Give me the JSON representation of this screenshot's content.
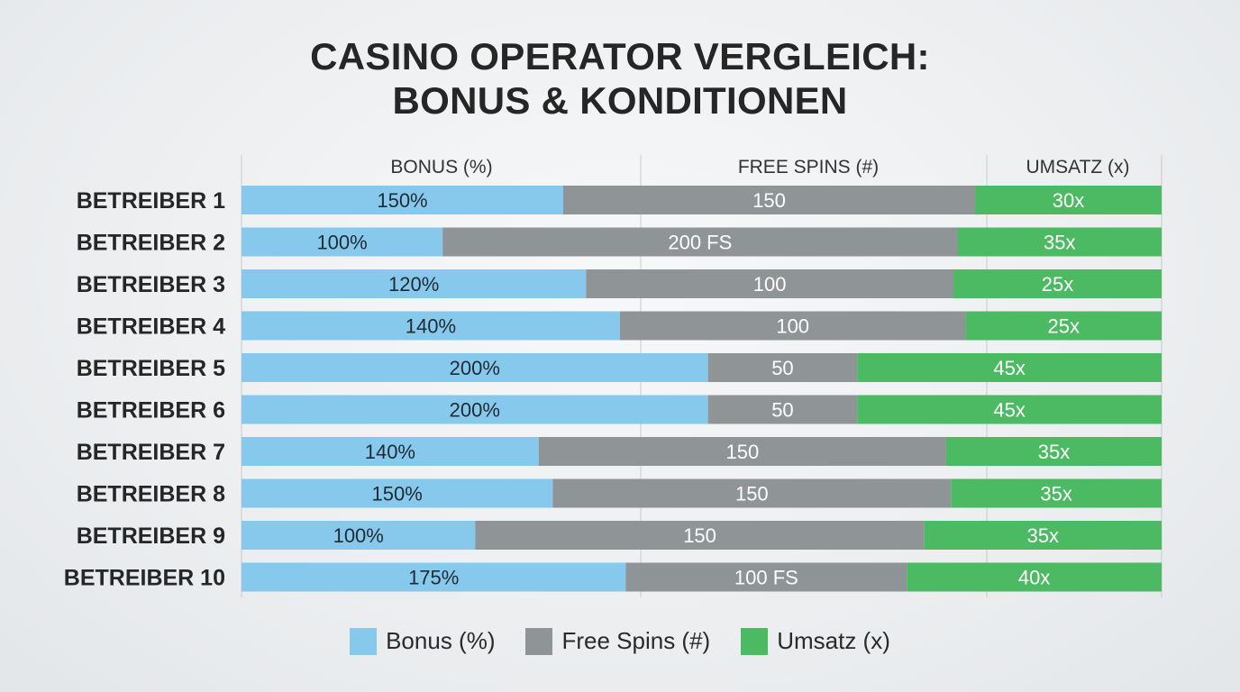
{
  "title_line1": "CASINO OPERATOR VERGLEICH:",
  "title_line2": "BONUS & KONDITIONEN",
  "colors": {
    "bonus": "#87c9ec",
    "spins": "#8f9597",
    "umsatz": "#4cba63"
  },
  "chart_data": {
    "type": "bar",
    "stacked": true,
    "orientation": "horizontal",
    "column_headers": [
      "BONUS (%)",
      "FREE SPINS (#)",
      "UMSATZ (x)"
    ],
    "categories": [
      "BETREIBER 1",
      "BETREIBER 2",
      "BETREIBER 3",
      "BETREIBER 4",
      "BETREIBER 5",
      "BETREIBER 6",
      "BETREIBER 7",
      "BETREIBER 8",
      "BETREIBER 9",
      "BETREIBER 10"
    ],
    "series": [
      {
        "name": "Bonus (%)",
        "values": [
          150,
          100,
          120,
          140,
          200,
          200,
          140,
          150,
          100,
          175
        ],
        "labels": [
          "150%",
          "100%",
          "120%",
          "140%",
          "200%",
          "200%",
          "140%",
          "150%",
          "100%",
          "175%"
        ]
      },
      {
        "name": "Free Spins (#)",
        "values": [
          150,
          200,
          100,
          100,
          50,
          50,
          150,
          150,
          150,
          100
        ],
        "labels": [
          "150",
          "200 FS",
          "100",
          "100",
          "50",
          "50",
          "150",
          "150",
          "150",
          "100 FS"
        ]
      },
      {
        "name": "Umsatz (x)",
        "values": [
          30,
          35,
          25,
          25,
          45,
          45,
          35,
          35,
          35,
          40
        ],
        "labels": [
          "30x",
          "35x",
          "25x",
          "25x",
          "45x",
          "45x",
          "35x",
          "35x",
          "35x",
          "40x"
        ]
      }
    ],
    "legend": "bottom-center",
    "grid": false
  }
}
